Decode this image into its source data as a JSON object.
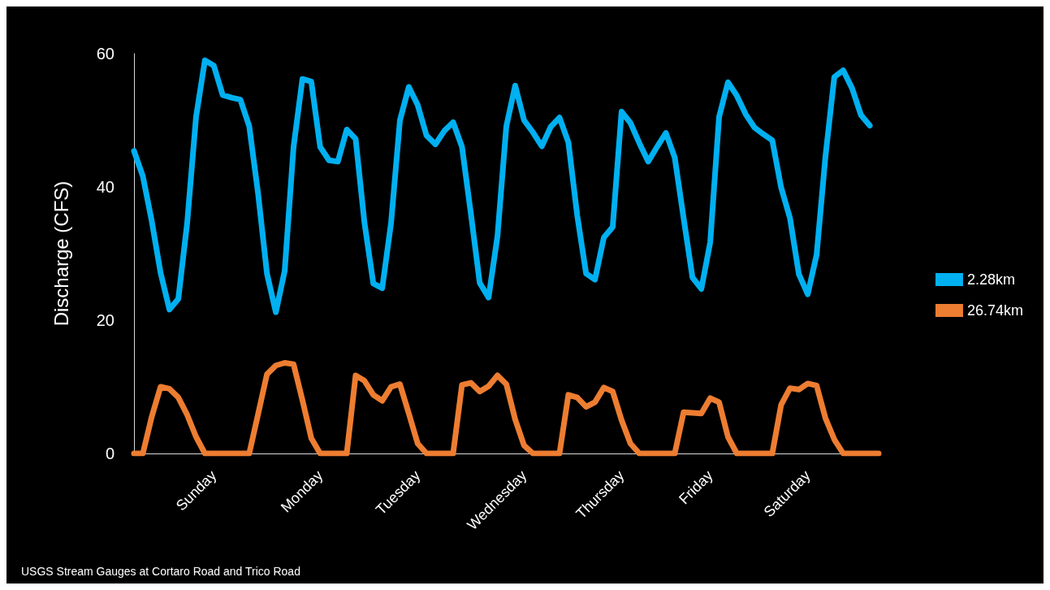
{
  "chart_data": {
    "type": "line",
    "ylabel": "Discharge (CFS)",
    "annotations": [
      "USGS Stream Gauges at Cortaro Road and Trico Road"
    ],
    "categories": [
      null,
      null,
      null,
      null,
      null,
      null,
      null,
      null,
      null,
      "Sunday",
      null,
      null,
      null,
      null,
      null,
      null,
      null,
      null,
      null,
      null,
      null,
      "Monday",
      null,
      null,
      null,
      null,
      null,
      null,
      null,
      null,
      null,
      null,
      "Tuesday",
      null,
      null,
      null,
      null,
      null,
      null,
      null,
      null,
      null,
      null,
      null,
      "Wednesday",
      null,
      null,
      null,
      null,
      null,
      null,
      null,
      null,
      null,
      null,
      "Thursday",
      null,
      null,
      null,
      null,
      null,
      null,
      null,
      null,
      null,
      "Friday",
      null,
      null,
      null,
      null,
      null,
      null,
      null,
      null,
      null,
      null,
      "Saturday",
      null,
      null,
      null,
      null,
      null,
      null,
      null,
      null
    ],
    "ylim": [
      0,
      60
    ],
    "yticks": [
      0,
      20,
      40,
      60
    ],
    "grid": false,
    "legend": "right",
    "marker": "none",
    "line_style": "solid",
    "series": [
      {
        "name": "2.28km",
        "color": "#00b0f0",
        "values": [
          45.4,
          41.6,
          34.9,
          27.1,
          21.6,
          23.2,
          34.6,
          50.5,
          59.0,
          58.2,
          53.8,
          53.4,
          53.1,
          49.1,
          39.0,
          27.0,
          21.2,
          27.4,
          46.0,
          56.2,
          55.8,
          46.0,
          44.0,
          43.8,
          48.6,
          47.2,
          34.6,
          25.5,
          24.8,
          34.6,
          50.0,
          55.0,
          52.3,
          47.7,
          46.4,
          48.4,
          49.7,
          46.0,
          36.0,
          25.6,
          23.4,
          32.6,
          49.1,
          55.2,
          50.0,
          48.2,
          46.1,
          49.0,
          50.4,
          46.7,
          35.7,
          27.0,
          26.1,
          32.4,
          34.0,
          51.3,
          49.6,
          46.6,
          43.8,
          46.0,
          48.1,
          44.4,
          35.3,
          26.4,
          24.7,
          31.7,
          50.5,
          55.7,
          53.7,
          50.9,
          48.9,
          47.9,
          47.0,
          39.9,
          35.3,
          26.9,
          23.9,
          29.8,
          44.6,
          56.5,
          57.5,
          54.8,
          50.8,
          49.2,
          null
        ]
      },
      {
        "name": "26.74km",
        "color": "#ed7d31",
        "values": [
          0,
          0,
          5.5,
          10.0,
          9.7,
          8.4,
          5.8,
          2.5,
          0,
          0,
          0,
          0,
          0,
          0,
          5.9,
          11.9,
          13.2,
          13.6,
          13.4,
          8.0,
          2.3,
          0,
          0,
          0,
          0,
          11.7,
          10.9,
          8.8,
          7.9,
          10.0,
          10.4,
          6.0,
          1.5,
          0,
          0,
          0,
          0,
          10.3,
          10.6,
          9.3,
          10.1,
          11.7,
          10.4,
          5.1,
          1.2,
          0,
          0,
          0,
          0,
          8.8,
          8.4,
          7.0,
          7.7,
          9.9,
          9.3,
          5.0,
          1.5,
          0,
          0,
          0,
          0,
          0,
          6.2,
          6.1,
          6.0,
          8.3,
          7.7,
          2.5,
          0,
          0,
          0,
          0,
          0,
          7.3,
          9.8,
          9.6,
          10.5,
          10.2,
          5.3,
          2.1,
          0,
          0,
          0,
          0,
          0
        ]
      }
    ]
  }
}
